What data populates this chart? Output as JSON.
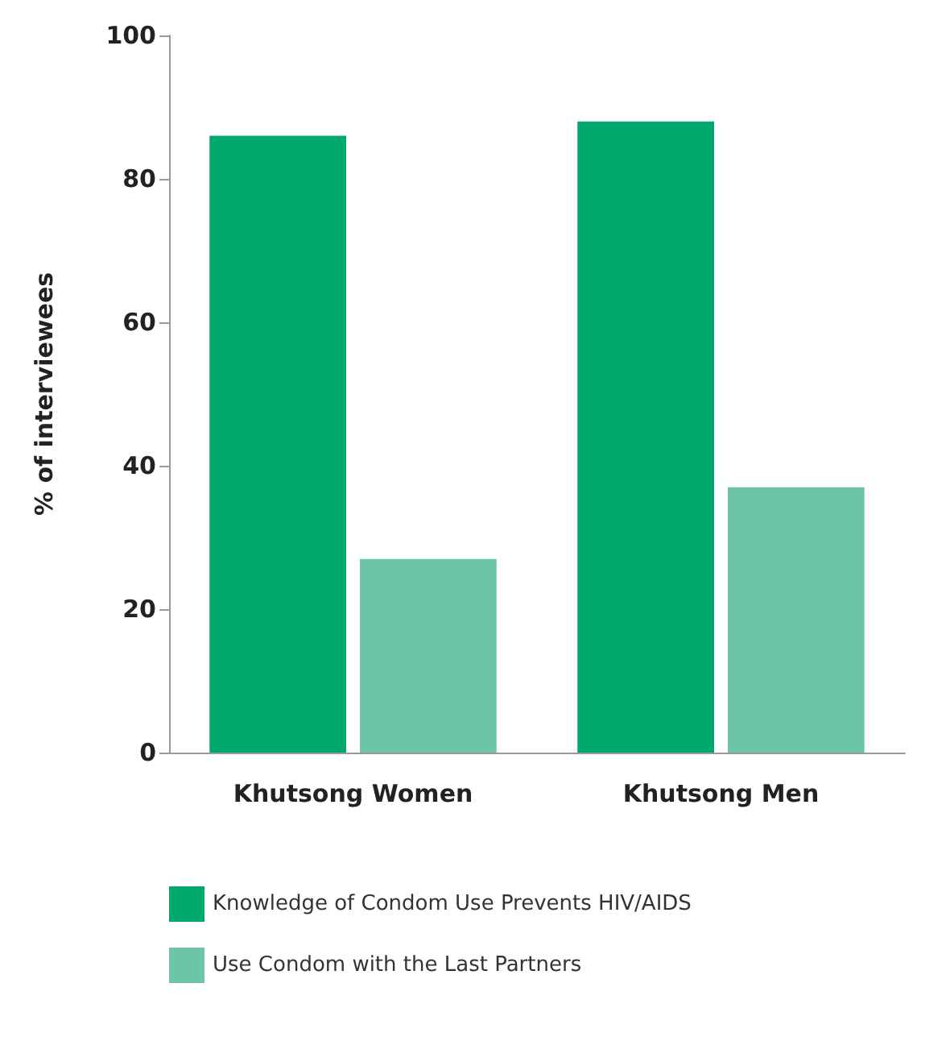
{
  "chart_data": {
    "type": "bar",
    "ylabel": "% of interviewees",
    "categories": [
      "Khutsong Women",
      "Khutsong Men"
    ],
    "series": [
      {
        "name": "Knowledge of Condom Use Prevents HIV/AIDS",
        "color": "#00a86b",
        "values": [
          86,
          88
        ]
      },
      {
        "name": "Use Condom with the Last Partners",
        "color": "#6cc5a6",
        "values": [
          27,
          37
        ]
      }
    ],
    "ylim": [
      0,
      100
    ],
    "yticks": [
      0,
      20,
      40,
      60,
      80,
      100
    ],
    "grid": false,
    "legend": "bottom left"
  }
}
